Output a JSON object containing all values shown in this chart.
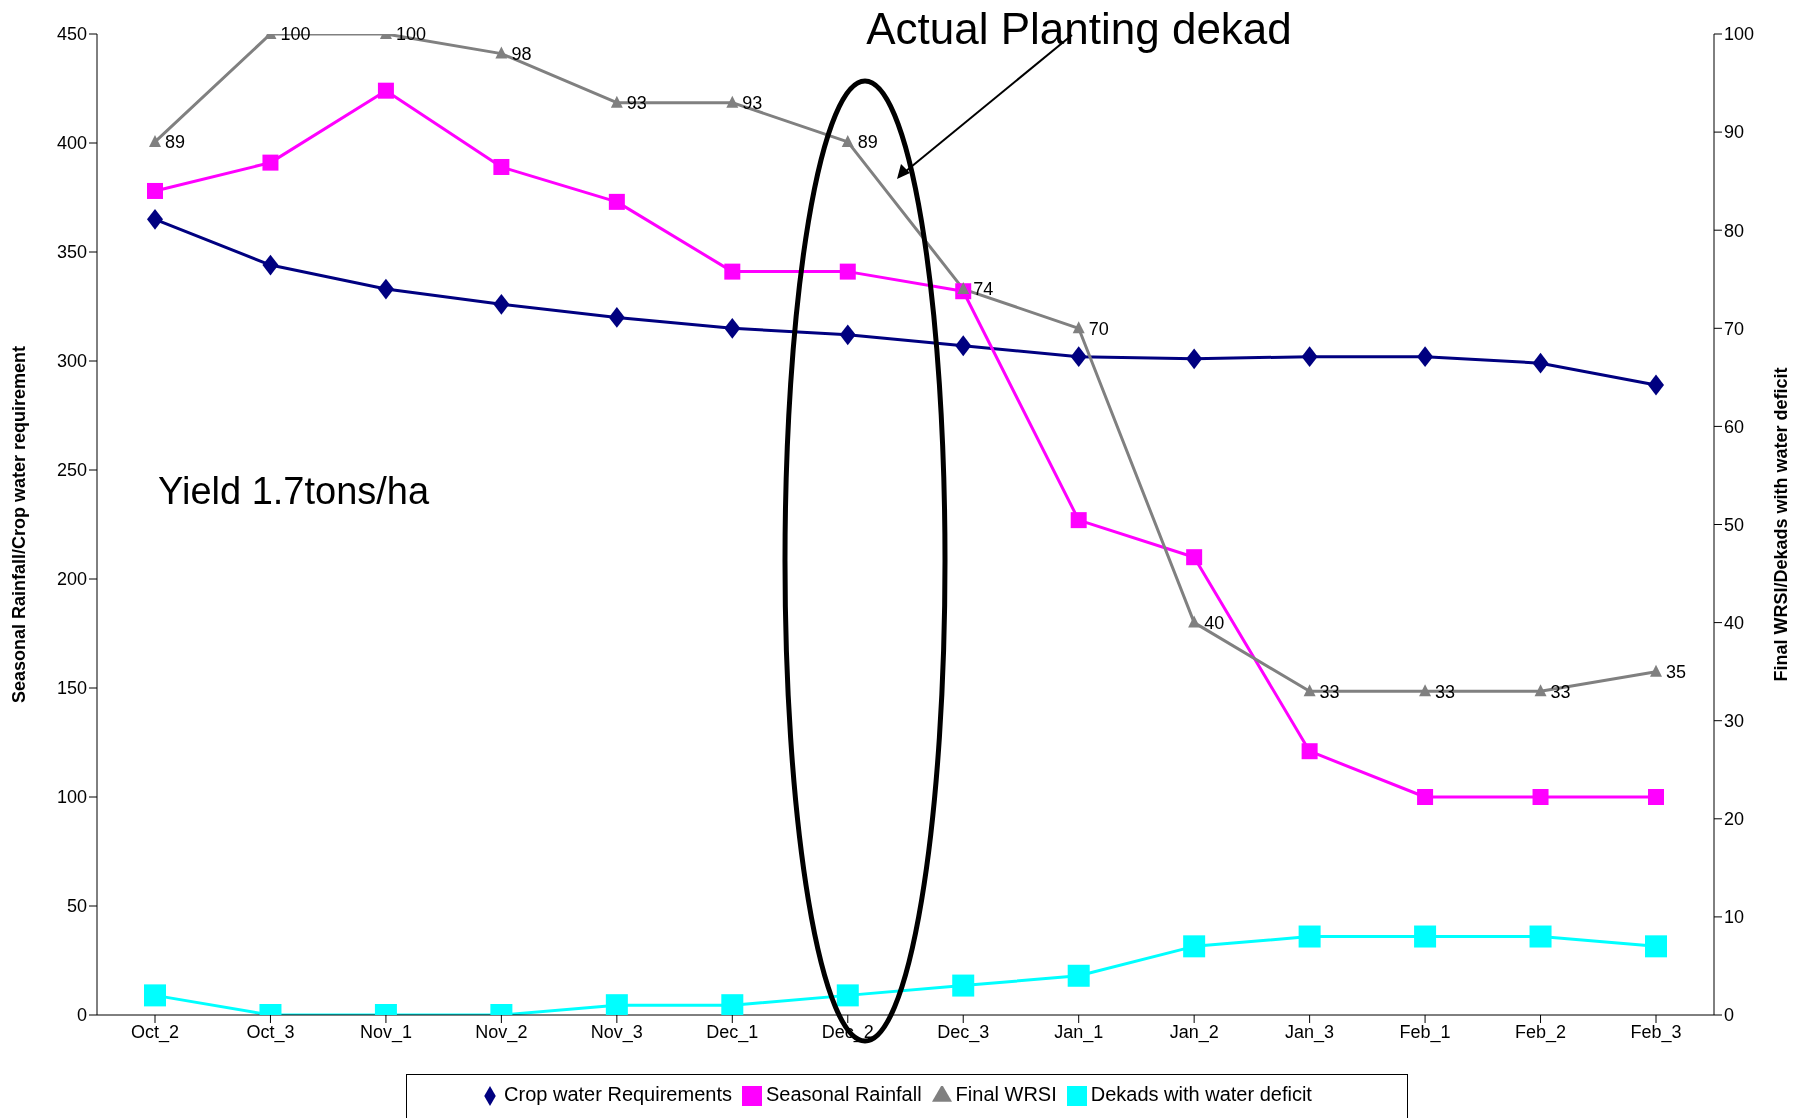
{
  "chart_data": {
    "type": "line",
    "ylabel": "Seasonal Rainfall/Crop water requirement",
    "y2label": "Final WRSI/Dekads with water deficit",
    "categories": [
      "Oct_2",
      "Oct_3",
      "Nov_1",
      "Nov_2",
      "Nov_3",
      "Dec_1",
      "Dec_2",
      "Dec_3",
      "Jan_1",
      "Jan_2",
      "Jan_3",
      "Feb_1",
      "Feb_2",
      "Feb_3"
    ],
    "series": [
      {
        "name": "Crop water Requirements",
        "color": "#000080",
        "marker": "diamond",
        "values": [
          365,
          344,
          333,
          326,
          320,
          315,
          312,
          307,
          302,
          301,
          302,
          302,
          299,
          289
        ]
      },
      {
        "name": "Seasonal Rainfall",
        "color": "#ff00ff",
        "marker": "square",
        "values": [
          378,
          391,
          424,
          389,
          373,
          341,
          341,
          332,
          227,
          210,
          121,
          100,
          100,
          100
        ]
      },
      {
        "name": "Final WRSI",
        "color": "#808080",
        "marker": "triangle",
        "axis": "y2",
        "data_labels": true,
        "values": [
          89,
          100,
          100,
          98,
          93,
          93,
          89,
          74,
          70,
          40,
          33,
          33,
          33,
          35
        ]
      },
      {
        "name": "Dekads with water deficit",
        "color": "#00ffff",
        "marker": "square",
        "axis": "y2",
        "values": [
          2,
          0,
          0,
          0,
          1,
          1,
          2,
          3,
          4,
          7,
          8,
          8,
          8,
          7
        ]
      }
    ],
    "ylim": [
      0,
      450
    ],
    "yticks": [
      0,
      50,
      100,
      150,
      200,
      250,
      300,
      350,
      400,
      450
    ],
    "y2lim": [
      0,
      100
    ],
    "y2ticks": [
      0,
      10,
      20,
      30,
      40,
      50,
      60,
      70,
      80,
      90,
      100
    ],
    "grid": false,
    "legend": "bottom",
    "annotations": [
      "Actual Planting dekad",
      "Yield 1.7tons/ha"
    ]
  }
}
